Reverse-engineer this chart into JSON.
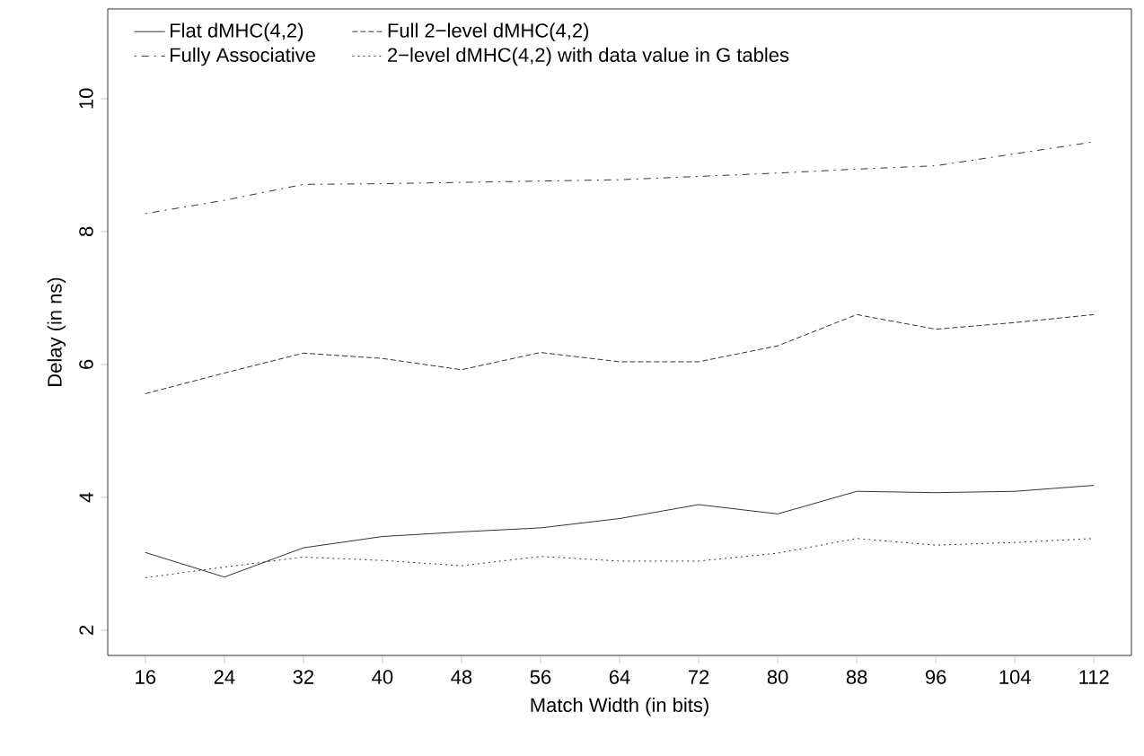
{
  "chart_data": {
    "type": "line",
    "xlabel": "Match Width (in bits)",
    "ylabel": "Delay (in ns)",
    "x": [
      16,
      24,
      32,
      40,
      48,
      56,
      64,
      72,
      80,
      88,
      96,
      104,
      112
    ],
    "xlim": [
      12.2,
      115.8
    ],
    "xticks": [
      16,
      24,
      32,
      40,
      48,
      56,
      64,
      72,
      80,
      88,
      96,
      104,
      112
    ],
    "ylim": [
      1.62,
      11.35
    ],
    "yticks": [
      2,
      4,
      6,
      8,
      10
    ],
    "grid": false,
    "legend": "top left",
    "marker": "none",
    "series": [
      {
        "name": "Flat dMHC(4,2)",
        "color": "#000000",
        "line_style": "solid",
        "values": [
          3.17,
          2.8,
          3.24,
          3.41,
          3.48,
          3.54,
          3.68,
          3.89,
          3.75,
          4.09,
          4.07,
          4.09,
          4.18
        ]
      },
      {
        "name": "Full 2−level dMHC(4,2)",
        "color": "#000000",
        "line_style": "dashed",
        "values": [
          5.56,
          5.87,
          6.17,
          6.09,
          5.92,
          6.18,
          6.04,
          6.04,
          6.28,
          6.75,
          6.53,
          6.63,
          6.75
        ]
      },
      {
        "name": "Fully Associative",
        "color": "#000000",
        "line_style": "dashdot",
        "values": [
          8.27,
          8.47,
          8.71,
          8.72,
          8.74,
          8.76,
          8.78,
          8.83,
          8.88,
          8.94,
          8.99,
          9.17,
          9.35
        ]
      },
      {
        "name": "2−level dMHC(4,2) with data value in G tables",
        "color": "#000000",
        "line_style": "dotted",
        "values": [
          2.79,
          2.95,
          3.1,
          3.05,
          2.97,
          3.11,
          3.04,
          3.04,
          3.16,
          3.38,
          3.28,
          3.32,
          3.38
        ]
      }
    ]
  }
}
